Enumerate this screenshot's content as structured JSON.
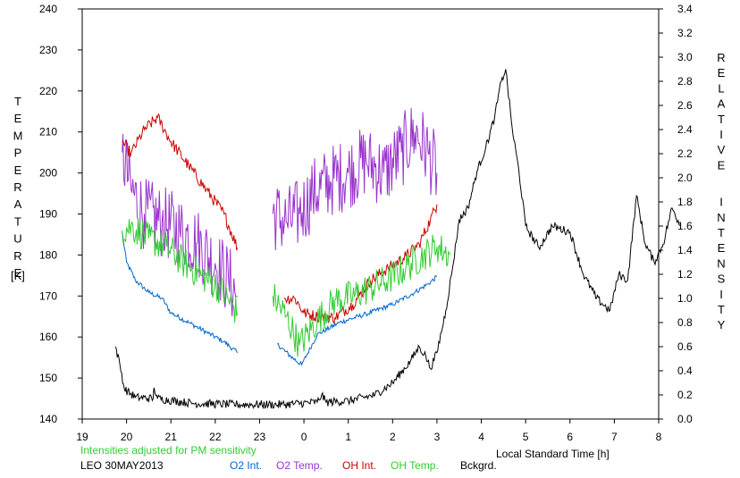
{
  "chart_data": {
    "type": "line",
    "left_axis_label": "TEMPERATURE",
    "left_axis_unit": "[K]",
    "right_axis_label": "RELATIVE INTENSITY",
    "xlabel": "Local Standard Time [h]",
    "note": "Intensities adjusted for PM sensitivity",
    "station_date": "LEO 30MAY2013",
    "xlim": [
      19,
      8
    ],
    "x_ticks": [
      "19",
      "20",
      "21",
      "22",
      "23",
      "0",
      "1",
      "2",
      "3",
      "4",
      "5",
      "6",
      "7",
      "8"
    ],
    "y_left_lim": [
      140,
      240
    ],
    "y_left_ticks": [
      "140",
      "150",
      "160",
      "170",
      "180",
      "190",
      "200",
      "210",
      "220",
      "230",
      "240"
    ],
    "y_right_lim": [
      0.0,
      3.4
    ],
    "y_right_ticks": [
      "0.0",
      "0.2",
      "0.4",
      "0.6",
      "0.8",
      "1.0",
      "1.2",
      "1.4",
      "1.6",
      "1.8",
      "2.0",
      "2.2",
      "2.4",
      "2.6",
      "2.8",
      "3.0",
      "3.2",
      "3.4"
    ],
    "grid": false,
    "legend_position": "bottom",
    "series": [
      {
        "name": "O2 Int.",
        "color": "#0066cc",
        "axis": "right",
        "jitter": 0.02,
        "segments": [
          [
            [
              19.9,
              1.55
            ],
            [
              20.0,
              1.3
            ],
            [
              20.2,
              1.15
            ],
            [
              20.5,
              1.05
            ],
            [
              20.8,
              1.0
            ],
            [
              21.0,
              0.88
            ],
            [
              21.4,
              0.8
            ],
            [
              21.8,
              0.72
            ],
            [
              22.2,
              0.64
            ],
            [
              22.5,
              0.55
            ]
          ],
          [
            [
              23.4,
              0.62
            ],
            [
              23.7,
              0.52
            ],
            [
              23.95,
              0.45
            ],
            [
              24.3,
              0.7
            ],
            [
              24.8,
              0.8
            ],
            [
              25.4,
              0.87
            ],
            [
              26.0,
              0.95
            ],
            [
              26.5,
              1.05
            ],
            [
              26.8,
              1.12
            ],
            [
              27.0,
              1.18
            ]
          ]
        ]
      },
      {
        "name": "O2 Temp.",
        "color": "#9933cc",
        "axis": "left",
        "jitter": 9,
        "segments": [
          [
            [
              19.9,
              205
            ],
            [
              20.1,
              196
            ],
            [
              20.4,
              190
            ],
            [
              20.8,
              188
            ],
            [
              21.2,
              186
            ],
            [
              21.6,
              183
            ],
            [
              22.0,
              178
            ],
            [
              22.3,
              174
            ],
            [
              22.5,
              170
            ]
          ],
          [
            [
              23.3,
              190
            ],
            [
              23.6,
              188
            ],
            [
              23.9,
              190
            ],
            [
              24.2,
              195
            ],
            [
              24.6,
              198
            ],
            [
              25.0,
              200
            ],
            [
              25.4,
              203
            ],
            [
              25.8,
              200
            ],
            [
              26.2,
              205
            ],
            [
              26.5,
              210
            ],
            [
              26.8,
              205
            ],
            [
              27.0,
              200
            ]
          ]
        ]
      },
      {
        "name": "OH Int.",
        "color": "#cc0000",
        "axis": "right",
        "jitter": 0.05,
        "segments": [
          [
            [
              19.9,
              2.3
            ],
            [
              20.1,
              2.2
            ],
            [
              20.4,
              2.4
            ],
            [
              20.7,
              2.5
            ],
            [
              21.0,
              2.3
            ],
            [
              21.4,
              2.1
            ],
            [
              21.8,
              1.9
            ],
            [
              22.2,
              1.7
            ],
            [
              22.5,
              1.42
            ]
          ],
          [
            [
              23.55,
              1.0
            ],
            [
              23.8,
              1.0
            ],
            [
              24.0,
              0.88
            ],
            [
              24.3,
              0.85
            ],
            [
              24.7,
              0.84
            ],
            [
              25.1,
              0.95
            ],
            [
              25.5,
              1.15
            ],
            [
              25.9,
              1.25
            ],
            [
              26.3,
              1.35
            ],
            [
              26.6,
              1.45
            ],
            [
              26.85,
              1.65
            ],
            [
              27.0,
              1.78
            ]
          ]
        ]
      },
      {
        "name": "OH Temp.",
        "color": "#33cc33",
        "axis": "left",
        "jitter": 4,
        "segments": [
          [
            [
              19.9,
              186
            ],
            [
              20.1,
              187
            ],
            [
              20.5,
              184
            ],
            [
              20.9,
              182
            ],
            [
              21.3,
              178
            ],
            [
              21.7,
              175
            ],
            [
              22.1,
              172
            ],
            [
              22.5,
              166
            ]
          ],
          [
            [
              23.3,
              170
            ],
            [
              23.6,
              165
            ],
            [
              23.9,
              158
            ],
            [
              24.3,
              164
            ],
            [
              24.7,
              169
            ],
            [
              25.1,
              170
            ],
            [
              25.5,
              172
            ],
            [
              25.9,
              174
            ],
            [
              26.3,
              177
            ],
            [
              26.7,
              180
            ],
            [
              27.0,
              182
            ],
            [
              27.3,
              180
            ]
          ]
        ]
      },
      {
        "name": "Bckgrd.",
        "color": "#000000",
        "axis": "right",
        "jitter": 0.035,
        "segments": [
          [
            [
              19.75,
              0.6
            ],
            [
              19.85,
              0.45
            ],
            [
              19.95,
              0.25
            ],
            [
              20.2,
              0.18
            ],
            [
              20.6,
              0.17
            ],
            [
              20.62,
              0.26
            ],
            [
              20.7,
              0.17
            ],
            [
              21.5,
              0.13
            ],
            [
              22.5,
              0.12
            ],
            [
              23.5,
              0.12
            ],
            [
              24.3,
              0.14
            ],
            [
              24.4,
              0.2
            ],
            [
              24.5,
              0.14
            ],
            [
              25.0,
              0.15
            ],
            [
              25.6,
              0.2
            ],
            [
              26.0,
              0.3
            ],
            [
              26.4,
              0.48
            ],
            [
              26.6,
              0.6
            ],
            [
              26.75,
              0.52
            ],
            [
              26.85,
              0.42
            ],
            [
              27.0,
              0.55
            ],
            [
              27.2,
              0.9
            ],
            [
              27.35,
              1.25
            ],
            [
              27.5,
              1.65
            ],
            [
              27.7,
              1.75
            ],
            [
              27.9,
              2.05
            ],
            [
              28.1,
              2.25
            ],
            [
              28.3,
              2.5
            ],
            [
              28.45,
              2.8
            ],
            [
              28.55,
              2.9
            ],
            [
              28.7,
              2.4
            ],
            [
              28.85,
              2.05
            ],
            [
              29.0,
              1.6
            ],
            [
              29.3,
              1.42
            ],
            [
              29.6,
              1.6
            ],
            [
              30.0,
              1.55
            ],
            [
              30.3,
              1.2
            ],
            [
              30.6,
              1.0
            ],
            [
              30.9,
              0.9
            ],
            [
              31.1,
              1.2
            ],
            [
              31.3,
              1.15
            ],
            [
              31.5,
              1.85
            ],
            [
              31.7,
              1.45
            ],
            [
              31.9,
              1.3
            ],
            [
              32.1,
              1.45
            ],
            [
              32.3,
              1.75
            ],
            [
              32.5,
              1.6
            ]
          ]
        ]
      }
    ]
  }
}
